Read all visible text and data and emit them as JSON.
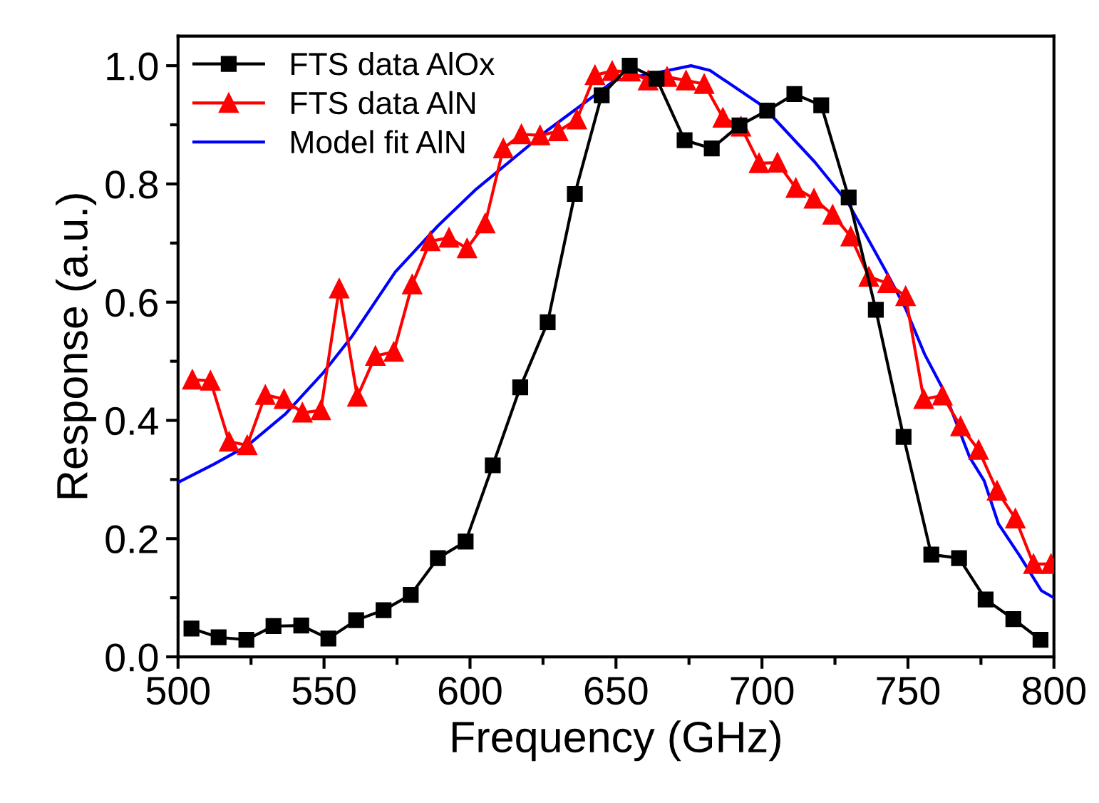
{
  "chart_data": {
    "type": "line",
    "xlabel": "Frequency (GHz)",
    "ylabel": "Response (a.u.)",
    "xlim": [
      500,
      800
    ],
    "ylim": [
      0,
      1.05
    ],
    "xticks": [
      500,
      550,
      600,
      650,
      700,
      750,
      800
    ],
    "yticks": [
      {
        "value": 0,
        "label": "0.0"
      },
      {
        "value": 0.2,
        "label": "0.2"
      },
      {
        "value": 0.4,
        "label": "0.4"
      },
      {
        "value": 0.6,
        "label": "0.6"
      },
      {
        "value": 0.8,
        "label": "0.8"
      },
      {
        "value": 1.0,
        "label": "1.0"
      }
    ],
    "legend": "top left",
    "grid": false,
    "series": [
      {
        "name": "FTS data AlOx",
        "color": "#000000",
        "marker": "square",
        "line_style": "solid",
        "x": [
          504.6,
          513.9,
          523.4,
          532.7,
          542.2,
          551.5,
          561,
          570.4,
          579.7,
          589,
          598.5,
          607.8,
          617.2,
          626.6,
          635.9,
          645.1,
          654.7,
          663.9,
          673.5,
          682.8,
          692.3,
          701.8,
          711.1,
          720.3,
          729.7,
          739,
          748.5,
          758,
          767.5,
          776.6,
          786.1,
          795.4
        ],
        "values": [
          0.048,
          0.033,
          0.029,
          0.052,
          0.053,
          0.031,
          0.062,
          0.079,
          0.105,
          0.167,
          0.195,
          0.324,
          0.456,
          0.566,
          0.783,
          0.95,
          1.0,
          0.978,
          0.874,
          0.86,
          0.899,
          0.924,
          0.952,
          0.933,
          0.777,
          0.587,
          0.372,
          0.173,
          0.167,
          0.097,
          0.064,
          0.029
        ]
      },
      {
        "name": "FTS data AlN",
        "color": "#ff0000",
        "marker": "triangle",
        "line_style": "solid",
        "x": [
          504.9,
          511.1,
          517.5,
          523.7,
          529.9,
          536.3,
          542.6,
          548.9,
          555.2,
          561.4,
          567.6,
          573.9,
          580.2,
          586.4,
          592.8,
          599,
          605.2,
          611.4,
          617.6,
          624,
          630.2,
          636.6,
          642.8,
          648.7,
          655,
          661,
          667.5,
          674,
          680.2,
          686.6,
          692.8,
          699,
          705.3,
          711.6,
          717.8,
          724.2,
          730.4,
          736.6,
          743,
          749.2,
          755.4,
          761.8,
          768,
          774.2,
          780.5,
          786.8,
          793,
          799
        ],
        "values": [
          0.469,
          0.467,
          0.364,
          0.358,
          0.443,
          0.436,
          0.413,
          0.417,
          0.623,
          0.44,
          0.509,
          0.516,
          0.63,
          0.703,
          0.709,
          0.691,
          0.733,
          0.86,
          0.884,
          0.882,
          0.889,
          0.909,
          0.984,
          0.991,
          0.99,
          0.975,
          0.981,
          0.975,
          0.969,
          0.912,
          0.897,
          0.835,
          0.836,
          0.793,
          0.775,
          0.748,
          0.711,
          0.643,
          0.632,
          0.61,
          0.436,
          0.442,
          0.39,
          0.35,
          0.281,
          0.234,
          0.157,
          0.157
        ]
      },
      {
        "name": "Model fit AlN",
        "color": "#0000ff",
        "marker": "none",
        "line_style": "solid",
        "x": [
          500,
          512.3,
          523.7,
          536.8,
          549.8,
          559.7,
          574.4,
          589,
          602.1,
          626.6,
          649.5,
          661,
          675.7,
          682.2,
          700.2,
          718.1,
          729.6,
          742.6,
          749.2,
          755.7,
          762.3,
          771.2,
          776.1,
          781,
          788.4,
          795.7,
          800
        ],
        "values": [
          0.295,
          0.326,
          0.357,
          0.411,
          0.481,
          0.543,
          0.651,
          0.729,
          0.791,
          0.891,
          0.975,
          0.985,
          1.0,
          0.992,
          0.932,
          0.837,
          0.767,
          0.651,
          0.589,
          0.512,
          0.45,
          0.337,
          0.298,
          0.225,
          0.17,
          0.112,
          0.1
        ]
      }
    ]
  }
}
